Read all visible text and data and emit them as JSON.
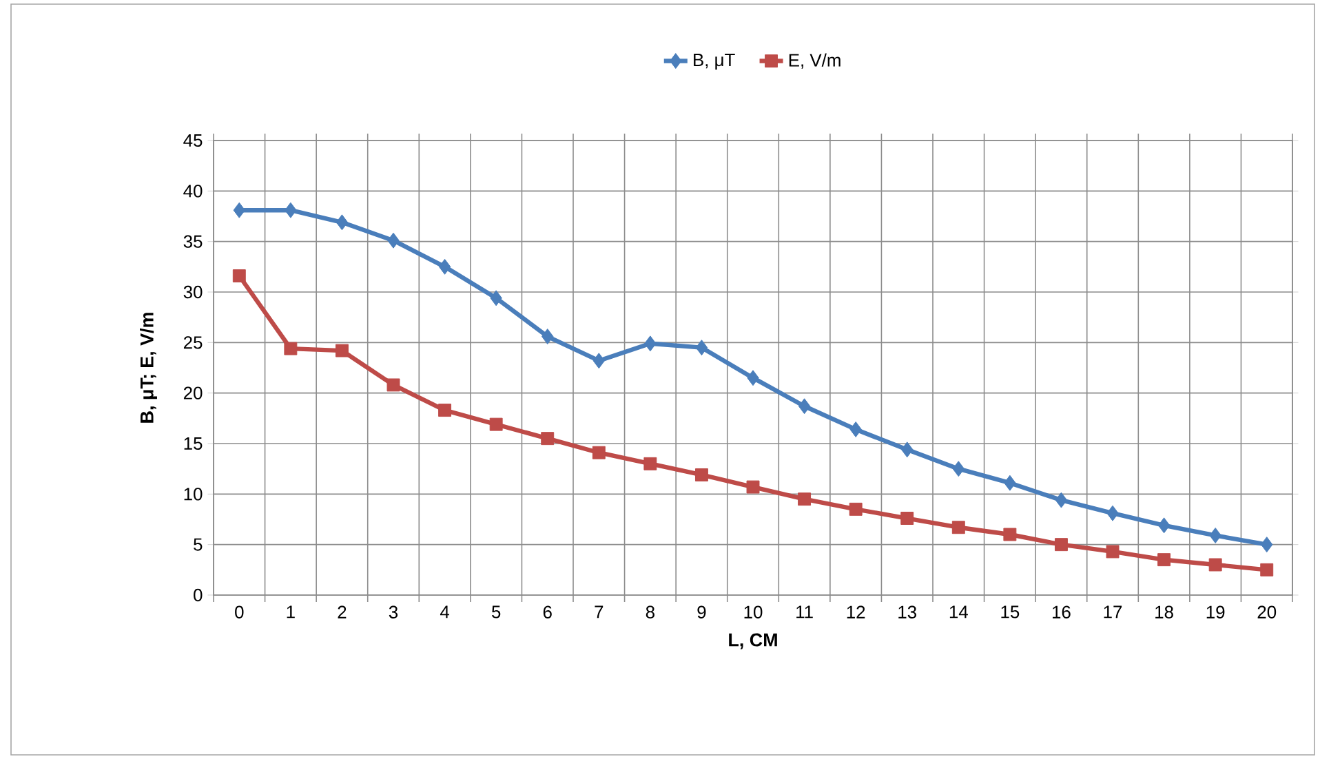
{
  "chart_data": {
    "type": "line",
    "xlabel": "L, CM",
    "ylabel": "B, μT; E, V/m",
    "categories": [
      "0",
      "1",
      "2",
      "3",
      "4",
      "5",
      "6",
      "7",
      "8",
      "9",
      "10",
      "11",
      "12",
      "13",
      "14",
      "15",
      "16",
      "17",
      "18",
      "19",
      "20"
    ],
    "series": [
      {
        "name": "B, μT",
        "color": "#4a7ebb",
        "marker": "diamond",
        "values": [
          38.1,
          38.1,
          36.9,
          35.1,
          32.5,
          29.4,
          25.6,
          23.2,
          24.9,
          24.5,
          21.5,
          18.7,
          16.4,
          14.4,
          12.5,
          11.1,
          9.4,
          8.1,
          6.9,
          5.9,
          5.0
        ]
      },
      {
        "name": "E, V/m",
        "color": "#be4b48",
        "marker": "square",
        "values": [
          31.6,
          24.4,
          24.2,
          20.8,
          18.3,
          16.9,
          15.5,
          14.1,
          13.0,
          11.9,
          10.7,
          9.5,
          8.5,
          7.6,
          6.7,
          6.0,
          5.0,
          4.3,
          3.5,
          3.0,
          2.5
        ]
      }
    ],
    "ylim": [
      0,
      45
    ],
    "yticks": [
      0,
      5,
      10,
      15,
      20,
      25,
      30,
      35,
      40,
      45
    ],
    "grid": true,
    "legend": "top",
    "line_style": "solid"
  }
}
